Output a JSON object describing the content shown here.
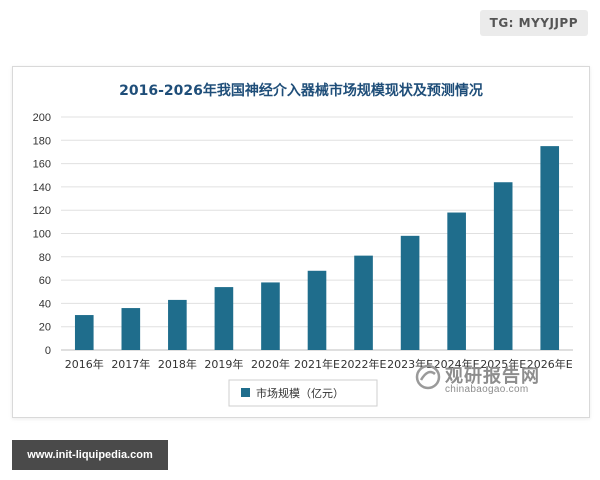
{
  "badge": "TG: MYYJJPP",
  "footer_url": "www.init-liquipedia.com",
  "watermark": {
    "cn": "观研报告网",
    "en": "chinabaogao.com"
  },
  "colors": {
    "bar": "#1f6d8c",
    "title": "#1f4e79",
    "text": "#333333",
    "grid": "#e0e0e0"
  },
  "chart_data": {
    "type": "bar",
    "title": "2016-2026年我国神经介入器械市场规模现状及预测情况",
    "categories": [
      "2016年",
      "2017年",
      "2018年",
      "2019年",
      "2020年",
      "2021年E",
      "2022年E",
      "2023年E",
      "2024年E",
      "2025年E",
      "2026年E"
    ],
    "series": [
      {
        "name": "市场规模（亿元）",
        "values": [
          30,
          36,
          43,
          54,
          58,
          68,
          81,
          98,
          118,
          144,
          175
        ]
      }
    ],
    "xlabel": "",
    "ylabel": "",
    "ylim": [
      0,
      200
    ],
    "yticks": [
      0,
      20,
      40,
      60,
      80,
      100,
      120,
      140,
      160,
      180,
      200
    ],
    "grid": true,
    "legend": "bottom-center"
  }
}
